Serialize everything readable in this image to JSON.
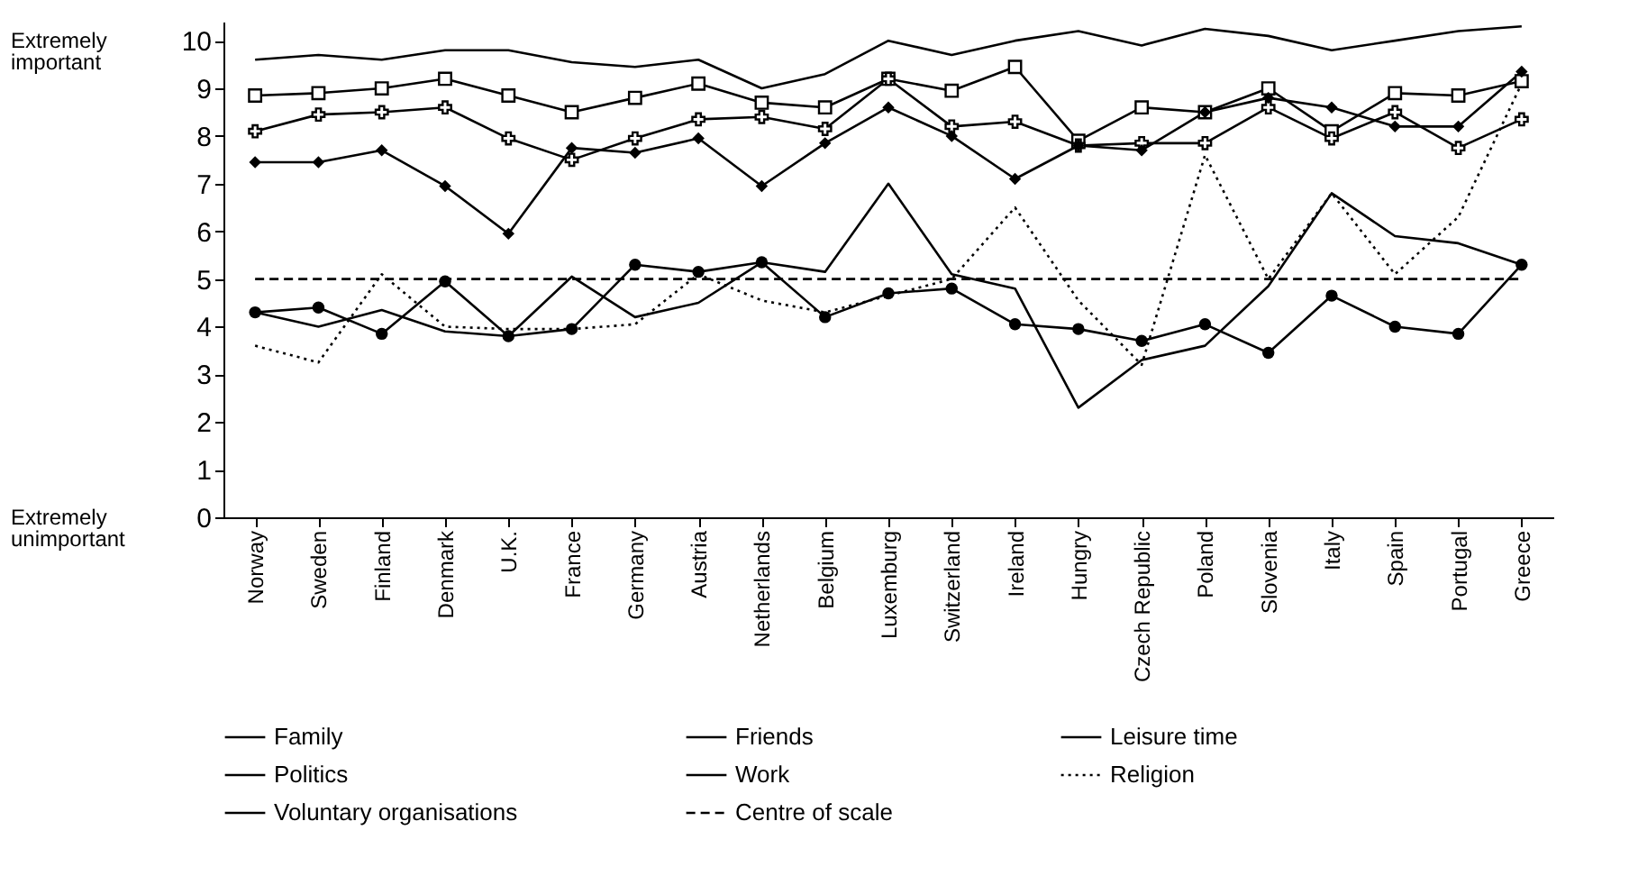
{
  "chart_data": {
    "type": "line",
    "categories": [
      "Norway",
      "Sweden",
      "Finland",
      "Denmark",
      "U.K.",
      "France",
      "Germany",
      "Austria",
      "Netherlands",
      "Belgium",
      "Luxemburg",
      "Switzerland",
      "Ireland",
      "Hungry",
      "Czech Republic",
      "Poland",
      "Slovenia",
      "Italy",
      "Spain",
      "Portugal",
      "Greece"
    ],
    "series": [
      {
        "name": "Family",
        "color": "#000000",
        "marker": "none",
        "line_style": "solid",
        "values": [
          9.6,
          9.7,
          9.6,
          9.8,
          9.8,
          9.55,
          9.45,
          9.6,
          9.0,
          9.3,
          10.0,
          9.7,
          10.0,
          10.2,
          9.9,
          10.25,
          10.1,
          9.8,
          10.0,
          10.2,
          10.3
        ]
      },
      {
        "name": "Friends",
        "color": "#000000",
        "marker": "square",
        "line_style": "solid",
        "values": [
          8.85,
          8.9,
          9.0,
          9.2,
          8.85,
          8.5,
          8.8,
          9.1,
          8.7,
          8.6,
          9.2,
          8.95,
          9.45,
          7.9,
          8.6,
          8.5,
          9.0,
          8.1,
          8.9,
          8.85,
          9.15
        ]
      },
      {
        "name": "Leisure time",
        "color": "#000000",
        "marker": "cross",
        "line_style": "solid",
        "values": [
          8.1,
          8.45,
          8.5,
          8.6,
          7.95,
          7.5,
          7.95,
          8.35,
          8.4,
          8.15,
          9.2,
          8.2,
          8.3,
          7.8,
          7.85,
          7.85,
          8.6,
          7.95,
          8.5,
          7.75,
          8.35
        ]
      },
      {
        "name": "Politics",
        "color": "#000000",
        "marker": "circle",
        "line_style": "solid",
        "values": [
          4.3,
          4.4,
          3.85,
          4.95,
          3.8,
          3.95,
          5.3,
          5.15,
          5.35,
          4.2,
          4.7,
          4.8,
          4.05,
          3.95,
          3.7,
          4.05,
          3.45,
          4.65,
          4.0,
          3.85,
          5.3
        ]
      },
      {
        "name": "Work",
        "color": "#000000",
        "marker": "diamond",
        "line_style": "solid",
        "values": [
          7.45,
          7.45,
          7.7,
          6.95,
          5.95,
          7.75,
          7.65,
          7.95,
          6.95,
          7.85,
          8.6,
          8.0,
          7.1,
          7.8,
          7.7,
          8.5,
          8.8,
          8.6,
          8.2,
          8.2,
          9.35
        ]
      },
      {
        "name": "Religion",
        "color": "#000000",
        "marker": "none",
        "line_style": "dotted",
        "values": [
          3.6,
          3.25,
          5.1,
          4.0,
          3.95,
          3.95,
          4.05,
          5.1,
          4.55,
          4.3,
          4.65,
          5.0,
          6.5,
          4.55,
          3.2,
          7.6,
          5.0,
          6.8,
          5.1,
          6.3,
          9.1
        ]
      },
      {
        "name": "Voluntary organisations",
        "color": "#000000",
        "marker": "none",
        "line_style": "solid",
        "values": [
          4.3,
          4.0,
          4.35,
          3.9,
          3.8,
          5.05,
          4.2,
          4.5,
          5.35,
          5.15,
          7.0,
          5.1,
          4.8,
          2.3,
          3.3,
          3.6,
          4.85,
          6.8,
          5.9,
          5.75,
          5.3
        ]
      },
      {
        "name": "Centre of scale",
        "color": "#000000",
        "marker": "none",
        "line_style": "dashed",
        "values": [
          5,
          5,
          5,
          5,
          5,
          5,
          5,
          5,
          5,
          5,
          5,
          5,
          5,
          5,
          5,
          5,
          5,
          5,
          5,
          5,
          5
        ]
      }
    ],
    "ylim": [
      0,
      10.4
    ],
    "yticks": [
      0,
      1,
      2,
      3,
      4,
      5,
      6,
      7,
      8,
      9,
      10
    ],
    "annotations": [
      "Extremely important",
      "Extremely unimportant"
    ],
    "grid": false,
    "legend": "bottom"
  }
}
